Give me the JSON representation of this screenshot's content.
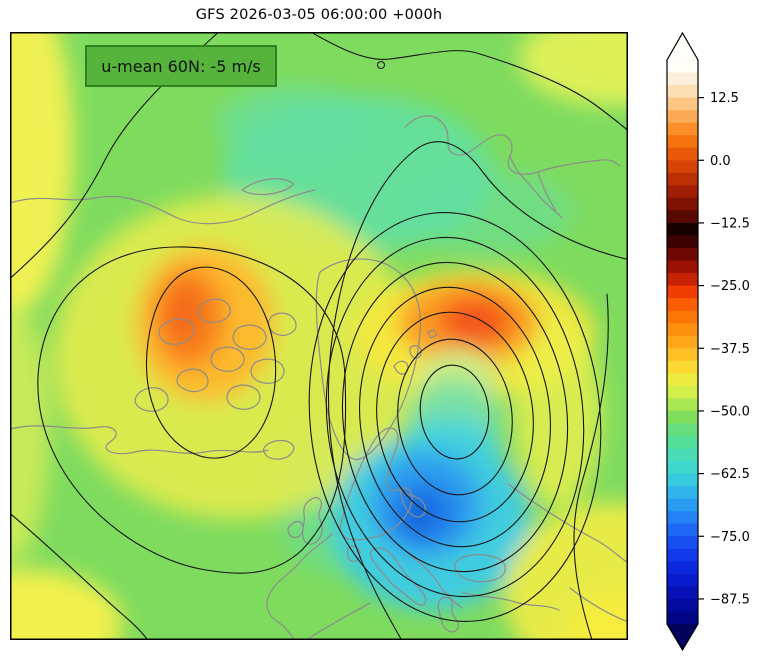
{
  "figure": {
    "title": "GFS 2026-03-05 06:00:00 +000h",
    "background_color": "#ffffff"
  },
  "map": {
    "annotation": {
      "text": "u-mean 60N: -5 m/s",
      "fill": "#54b23b",
      "border": "#2d7d20",
      "text_color": "#0a0a0a"
    },
    "field_base_color": "#7edb5e",
    "coastline_color": "#8c8c8c",
    "contour_color": "#161616",
    "frame_color": "#000000"
  },
  "colorbar": {
    "vmax": 20,
    "vmin": -92.5,
    "step": 2.5,
    "outline_color": "#000000",
    "over_color": "#fffefb",
    "under_color": "#01025a",
    "ticks": [
      {
        "label": "12.5",
        "value": 12.5
      },
      {
        "label": "0.0",
        "value": 0
      },
      {
        "label": "−12.5",
        "value": -12.5
      },
      {
        "label": "−25.0",
        "value": -25
      },
      {
        "label": "−37.5",
        "value": -37.5
      },
      {
        "label": "−50.0",
        "value": -50
      },
      {
        "label": "−62.5",
        "value": -62.5
      },
      {
        "label": "−75.0",
        "value": -75
      },
      {
        "label": "−87.5",
        "value": -87.5
      }
    ],
    "stops": [
      [
        20,
        "#fefdf8"
      ],
      [
        17.5,
        "#fdf0da"
      ],
      [
        15,
        "#fcdfb2"
      ],
      [
        12.5,
        "#fcc684"
      ],
      [
        10,
        "#fbab55"
      ],
      [
        7.5,
        "#fa8f2a"
      ],
      [
        5,
        "#f67410"
      ],
      [
        2.5,
        "#ea580a"
      ],
      [
        0,
        "#d64307"
      ],
      [
        -2.5,
        "#bb2f05"
      ],
      [
        -5,
        "#9e1f04"
      ],
      [
        -7.5,
        "#7f1203"
      ],
      [
        -10,
        "#570902"
      ],
      [
        -12.5,
        "#160100"
      ],
      [
        -15,
        "#3d0302"
      ],
      [
        -17.5,
        "#6e0803"
      ],
      [
        -20,
        "#9b1204"
      ],
      [
        -22.5,
        "#c62204"
      ],
      [
        -25,
        "#ef3d03"
      ],
      [
        -27.5,
        "#f95c04"
      ],
      [
        -30,
        "#fb7607"
      ],
      [
        -32.5,
        "#fc8f0e"
      ],
      [
        -35,
        "#fda719"
      ],
      [
        -37.5,
        "#fdc026"
      ],
      [
        -40,
        "#fbd933"
      ],
      [
        -42.5,
        "#eeeb40"
      ],
      [
        -45,
        "#d2ee4b"
      ],
      [
        -47.5,
        "#a9e654"
      ],
      [
        -50,
        "#81de5d"
      ],
      [
        -52.5,
        "#66dd7c"
      ],
      [
        -55,
        "#55dd9a"
      ],
      [
        -57.5,
        "#49dcb6"
      ],
      [
        -60,
        "#3fd8cd"
      ],
      [
        -62.5,
        "#37cbe0"
      ],
      [
        -65,
        "#30b4ea"
      ],
      [
        -67.5,
        "#2a9cf0"
      ],
      [
        -70,
        "#2482f4"
      ],
      [
        -72.5,
        "#1e68f5"
      ],
      [
        -75,
        "#174ff2"
      ],
      [
        -77.5,
        "#123aeb"
      ],
      [
        -80,
        "#0d29dd"
      ],
      [
        -82.5,
        "#091bcb"
      ],
      [
        -85,
        "#0611b6"
      ],
      [
        -87.5,
        "#040a9f"
      ],
      [
        -90,
        "#020585"
      ],
      [
        -92.5,
        "#01036b"
      ]
    ]
  },
  "chart_data": {
    "type": "heatmap",
    "subtype": "filled-contour-polar-map",
    "title": "GFS 2026-03-05 06:00:00 +000h",
    "annotation": "u-mean 60N: -5 m/s",
    "projection": "north-polar-stereographic",
    "colorbar_range": [
      -92.5,
      20
    ],
    "colorbar_tick_values": [
      12.5,
      0,
      -12.5,
      -25,
      -37.5,
      -50,
      -62.5,
      -75,
      -87.5
    ],
    "colorbar_step": 2.5,
    "legend_position": "right",
    "field_features": [
      {
        "feature": "background field",
        "approx_value": -50,
        "color": "green"
      },
      {
        "feature": "warm anomaly over Canadian Arctic archipelago",
        "approx_value": -28,
        "color": "orange"
      },
      {
        "feature": "warm crescent north of Scandinavia / Kara Sea",
        "approx_value": -26,
        "color": "orange-red"
      },
      {
        "feature": "cold pool over southeastern Europe",
        "approx_value": -72,
        "color": "blue"
      },
      {
        "feature": "teal patch over central Arctic",
        "approx_value": -55,
        "color": "teal"
      }
    ],
    "overlays": [
      "black contour lines around two circulation centers",
      "gray coastlines"
    ]
  }
}
